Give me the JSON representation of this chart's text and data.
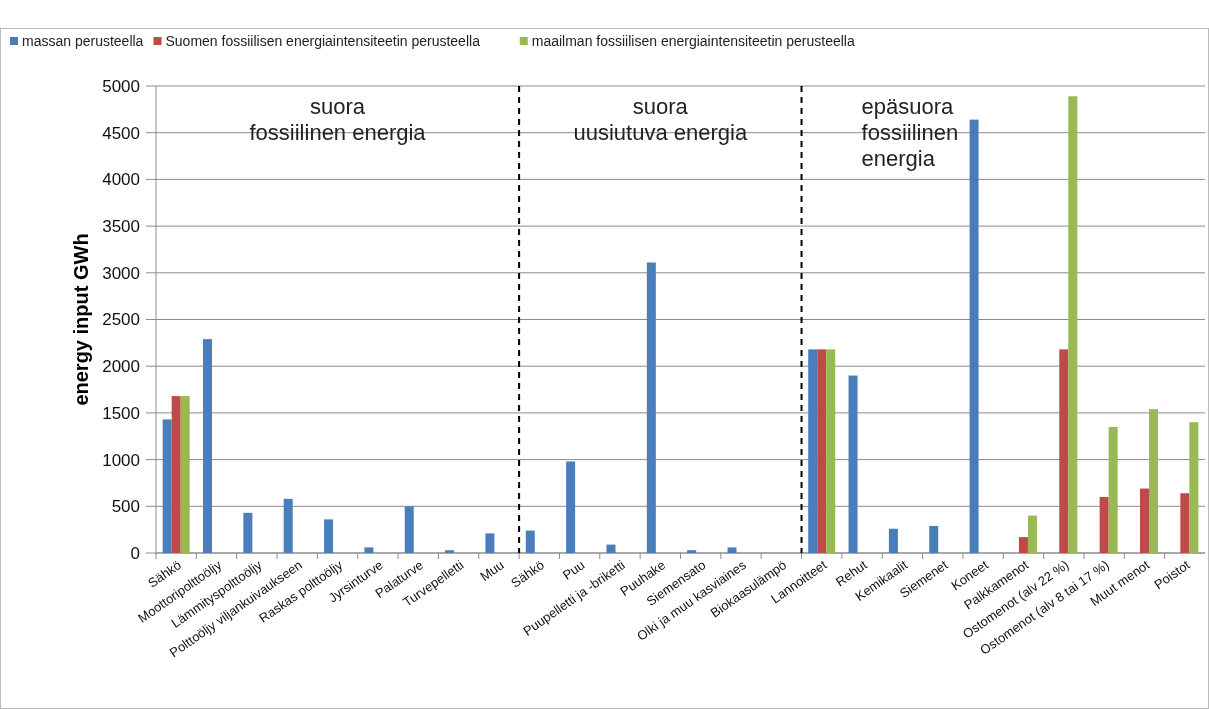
{
  "chart_data": {
    "type": "bar",
    "ylabel": "energy input GWh",
    "categories": [
      "Sähkö",
      "Moottoripolttoöljy",
      "Lämmityspolttoöljy",
      "Polttoöljy viljankuivaukseen",
      "Raskas polttoöljy",
      "Jyrsinturve",
      "Palaturve",
      "Turvepelletti",
      "Muu",
      "Sähkö",
      "Puu",
      "Puupelletti ja -briketti",
      "Puuhake",
      "Siemensato",
      "Olki ja muu kasviaines",
      "Biokaasulämpö",
      "Lannoitteet",
      "Rehut",
      "Kemikaalit",
      "Siemenet",
      "Koneet",
      "Palkkamenot",
      "Ostomenot (alv 22 %)",
      "Ostomenot (alv 8 tai 17 %)",
      "Muut menot",
      "Poistot"
    ],
    "series": [
      {
        "name": "massan perusteella",
        "color": "#4a7ebb",
        "values": [
          1430,
          2290,
          430,
          580,
          360,
          60,
          500,
          30,
          210,
          240,
          980,
          90,
          3110,
          30,
          60,
          null,
          2180,
          1900,
          260,
          290,
          4640,
          null,
          null,
          null,
          null,
          null
        ]
      },
      {
        "name": "Suomen fossiilisen energiaintensiteetin perusteella",
        "color": "#be4b48",
        "values": [
          1680,
          null,
          null,
          null,
          null,
          null,
          null,
          null,
          null,
          null,
          null,
          null,
          null,
          null,
          null,
          null,
          2180,
          null,
          null,
          null,
          null,
          170,
          2180,
          600,
          690,
          640
        ]
      },
      {
        "name": "maailman fossiilisen energiaintensiteetin perusteella",
        "color": "#98b954",
        "values": [
          1680,
          null,
          null,
          null,
          null,
          null,
          null,
          null,
          null,
          null,
          null,
          null,
          null,
          null,
          null,
          null,
          2180,
          null,
          null,
          null,
          null,
          400,
          4890,
          1350,
          1540,
          1400
        ]
      }
    ],
    "ylim": [
      0,
      5000
    ],
    "yticks": [
      0,
      500,
      1000,
      1500,
      2000,
      2500,
      3000,
      3500,
      4000,
      4500,
      5000
    ],
    "grid": "y",
    "legend": "top",
    "annotations": [
      "suora\nfossiilinen energia",
      "suora\nuusiutuva energia",
      "epäsuora\nfossiilinen\nenergia"
    ]
  }
}
